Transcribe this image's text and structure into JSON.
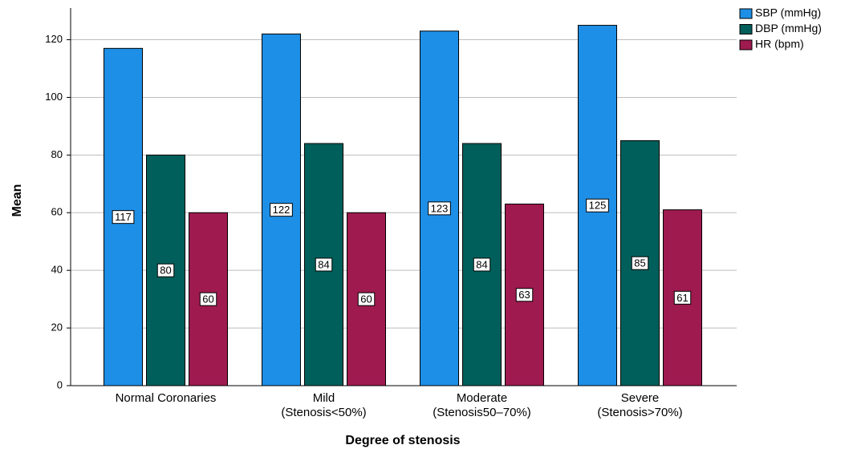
{
  "chart_data": {
    "type": "bar",
    "x_label": "Degree of stenosis",
    "y_label": "Mean",
    "categories": [
      "Normal Coronaries",
      "Mild\n(Stenosis<50%)",
      "Moderate\n(Stenosis50–70%)",
      "Severe\n(Stenosis>70%)"
    ],
    "series": [
      {
        "name": "SBP (mmHg)",
        "color": "#1e8fe6",
        "values": [
          117,
          122,
          123,
          125
        ]
      },
      {
        "name": "DBP (mmHg)",
        "color": "#005f5a",
        "values": [
          80,
          84,
          84,
          85
        ]
      },
      {
        "name": "HR (bpm)",
        "color": "#9e1a4f",
        "values": [
          60,
          60,
          63,
          61
        ]
      }
    ],
    "ylim": [
      0,
      131
    ],
    "yticks": [
      0,
      20,
      40,
      60,
      80,
      100,
      120
    ],
    "grid": true,
    "legend": "top-right"
  }
}
